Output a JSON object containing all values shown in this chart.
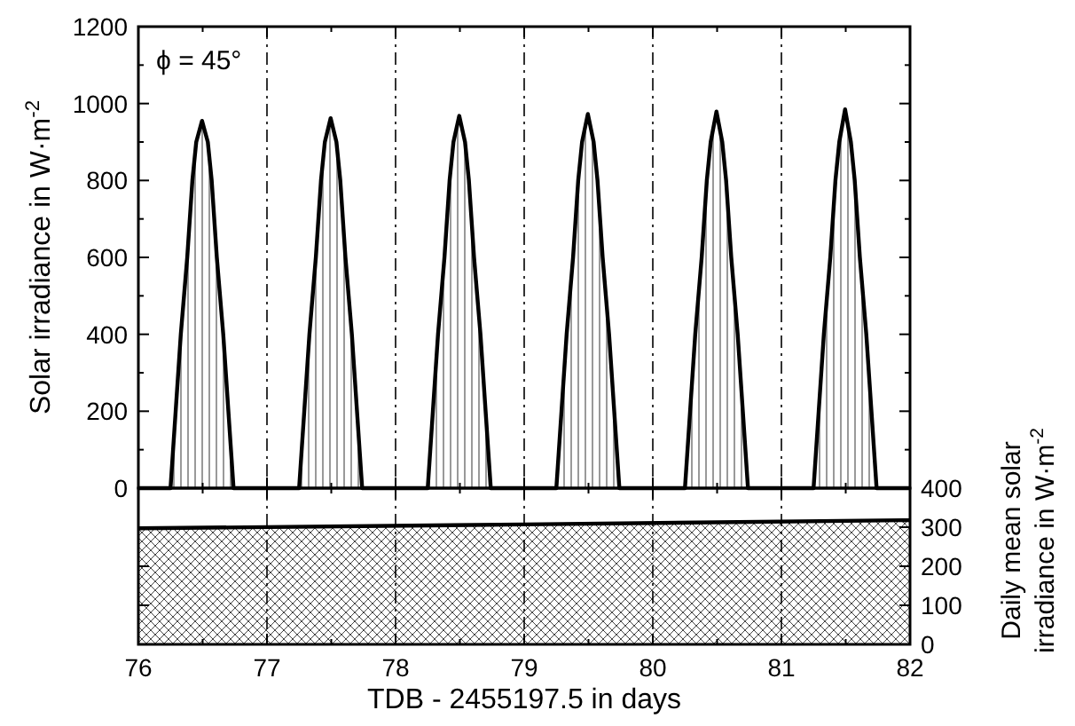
{
  "chart_data": [
    {
      "type": "area",
      "ylabel": "Solar irradiance in W·m$^{-2}$",
      "xlim": [
        76,
        82
      ],
      "xticks": [
        76,
        77,
        78,
        79,
        80,
        81,
        82
      ],
      "ylim": [
        0,
        1200
      ],
      "yticks": [
        0,
        200,
        400,
        600,
        800,
        1000,
        1200
      ],
      "tick_labels": "y",
      "annotations": [
        "ϕ = 45°"
      ],
      "ref_lines": [
        {
          "axis": "x",
          "value": 77
        },
        {
          "axis": "x",
          "value": 78
        },
        {
          "axis": "x",
          "value": 79
        },
        {
          "axis": "x",
          "value": 80
        },
        {
          "axis": "x",
          "value": 81
        }
      ],
      "series": [
        {
          "color": "#000000",
          "x": [
            76,
            76.25,
            76.29,
            76.33,
            76.38,
            76.42,
            76.45,
            76.495,
            76.54,
            76.57,
            76.61,
            76.66,
            76.7,
            76.74,
            77.25,
            77.29,
            77.33,
            77.38,
            77.42,
            77.45,
            77.495,
            77.54,
            77.57,
            77.61,
            77.66,
            77.7,
            77.74,
            78.25,
            78.29,
            78.33,
            78.38,
            78.42,
            78.45,
            78.495,
            78.54,
            78.57,
            78.61,
            78.66,
            78.7,
            78.74,
            79.25,
            79.29,
            79.33,
            79.38,
            79.42,
            79.45,
            79.495,
            79.54,
            79.57,
            79.61,
            79.66,
            79.7,
            79.74,
            80.25,
            80.29,
            80.33,
            80.38,
            80.42,
            80.45,
            80.495,
            80.54,
            80.57,
            80.61,
            80.66,
            80.7,
            80.74,
            81.25,
            81.29,
            81.33,
            81.38,
            81.42,
            81.45,
            81.495,
            81.54,
            81.57,
            81.61,
            81.66,
            81.7,
            81.74,
            82
          ],
          "values": [
            0,
            0,
            200,
            400,
            600,
            800,
            900,
            955,
            900,
            800,
            600,
            400,
            200,
            0,
            0,
            200,
            400,
            600,
            800,
            900,
            962,
            900,
            800,
            600,
            400,
            200,
            0,
            0,
            200,
            400,
            600,
            800,
            900,
            968,
            900,
            800,
            600,
            400,
            200,
            0,
            0,
            200,
            400,
            600,
            800,
            900,
            973,
            900,
            800,
            600,
            400,
            200,
            0,
            0,
            200,
            400,
            600,
            800,
            900,
            979,
            900,
            800,
            600,
            400,
            200,
            0,
            0,
            200,
            400,
            600,
            800,
            900,
            985,
            900,
            800,
            600,
            400,
            200,
            0,
            0
          ]
        }
      ]
    },
    {
      "type": "area",
      "xlabel": "TDB - 2455197.5 in days",
      "y2label": "Daily mean solar irradiance in W·m$^{-2}$",
      "xlim": [
        76,
        82
      ],
      "xticks": [
        76,
        77,
        78,
        79,
        80,
        81,
        82
      ],
      "y2lim": [
        0,
        400
      ],
      "y2ticks": [
        0,
        100,
        200,
        300,
        400
      ],
      "ref_lines": [
        {
          "axis": "x",
          "value": 77
        },
        {
          "axis": "x",
          "value": 78
        },
        {
          "axis": "x",
          "value": 79
        },
        {
          "axis": "x",
          "value": 80
        },
        {
          "axis": "x",
          "value": 81
        }
      ],
      "series": [
        {
          "color": "#000000",
          "axis": "y2",
          "x": [
            76,
            79,
            82
          ],
          "values": [
            297,
            307,
            318
          ]
        }
      ]
    }
  ]
}
